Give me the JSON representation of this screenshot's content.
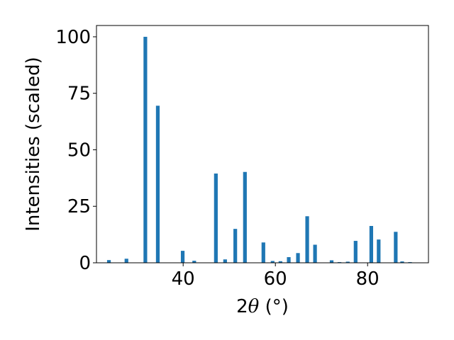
{
  "chart_data": {
    "type": "bar",
    "xlabel_prefix": "2",
    "xlabel_symbol": "θ",
    "xlabel_suffix": " (°)",
    "ylabel": "Intensities (scaled)",
    "xlim": [
      21.2,
      93.2
    ],
    "ylim": [
      0,
      105
    ],
    "xticks": [
      40,
      60,
      80
    ],
    "yticks": [
      0,
      25,
      50,
      75,
      100
    ],
    "grid": false,
    "bar_width": 0.8,
    "bar_color": "#1f77b4",
    "x": [
      23.9,
      27.7,
      31.8,
      34.5,
      39.9,
      42.4,
      47.1,
      49.1,
      51.3,
      53.4,
      57.4,
      59.4,
      61.1,
      62.9,
      64.9,
      66.9,
      68.6,
      72.2,
      73.9,
      75.7,
      77.4,
      80.8,
      82.4,
      86.1,
      87.5,
      89.2
    ],
    "values": [
      1.2,
      1.8,
      100,
      69.5,
      5.3,
      0.9,
      39.5,
      1.5,
      15.0,
      40.2,
      9.0,
      0.8,
      0.7,
      2.5,
      4.3,
      20.6,
      8.0,
      1.1,
      0.3,
      0.5,
      9.7,
      16.3,
      10.3,
      13.7,
      0.6,
      0.3
    ]
  }
}
